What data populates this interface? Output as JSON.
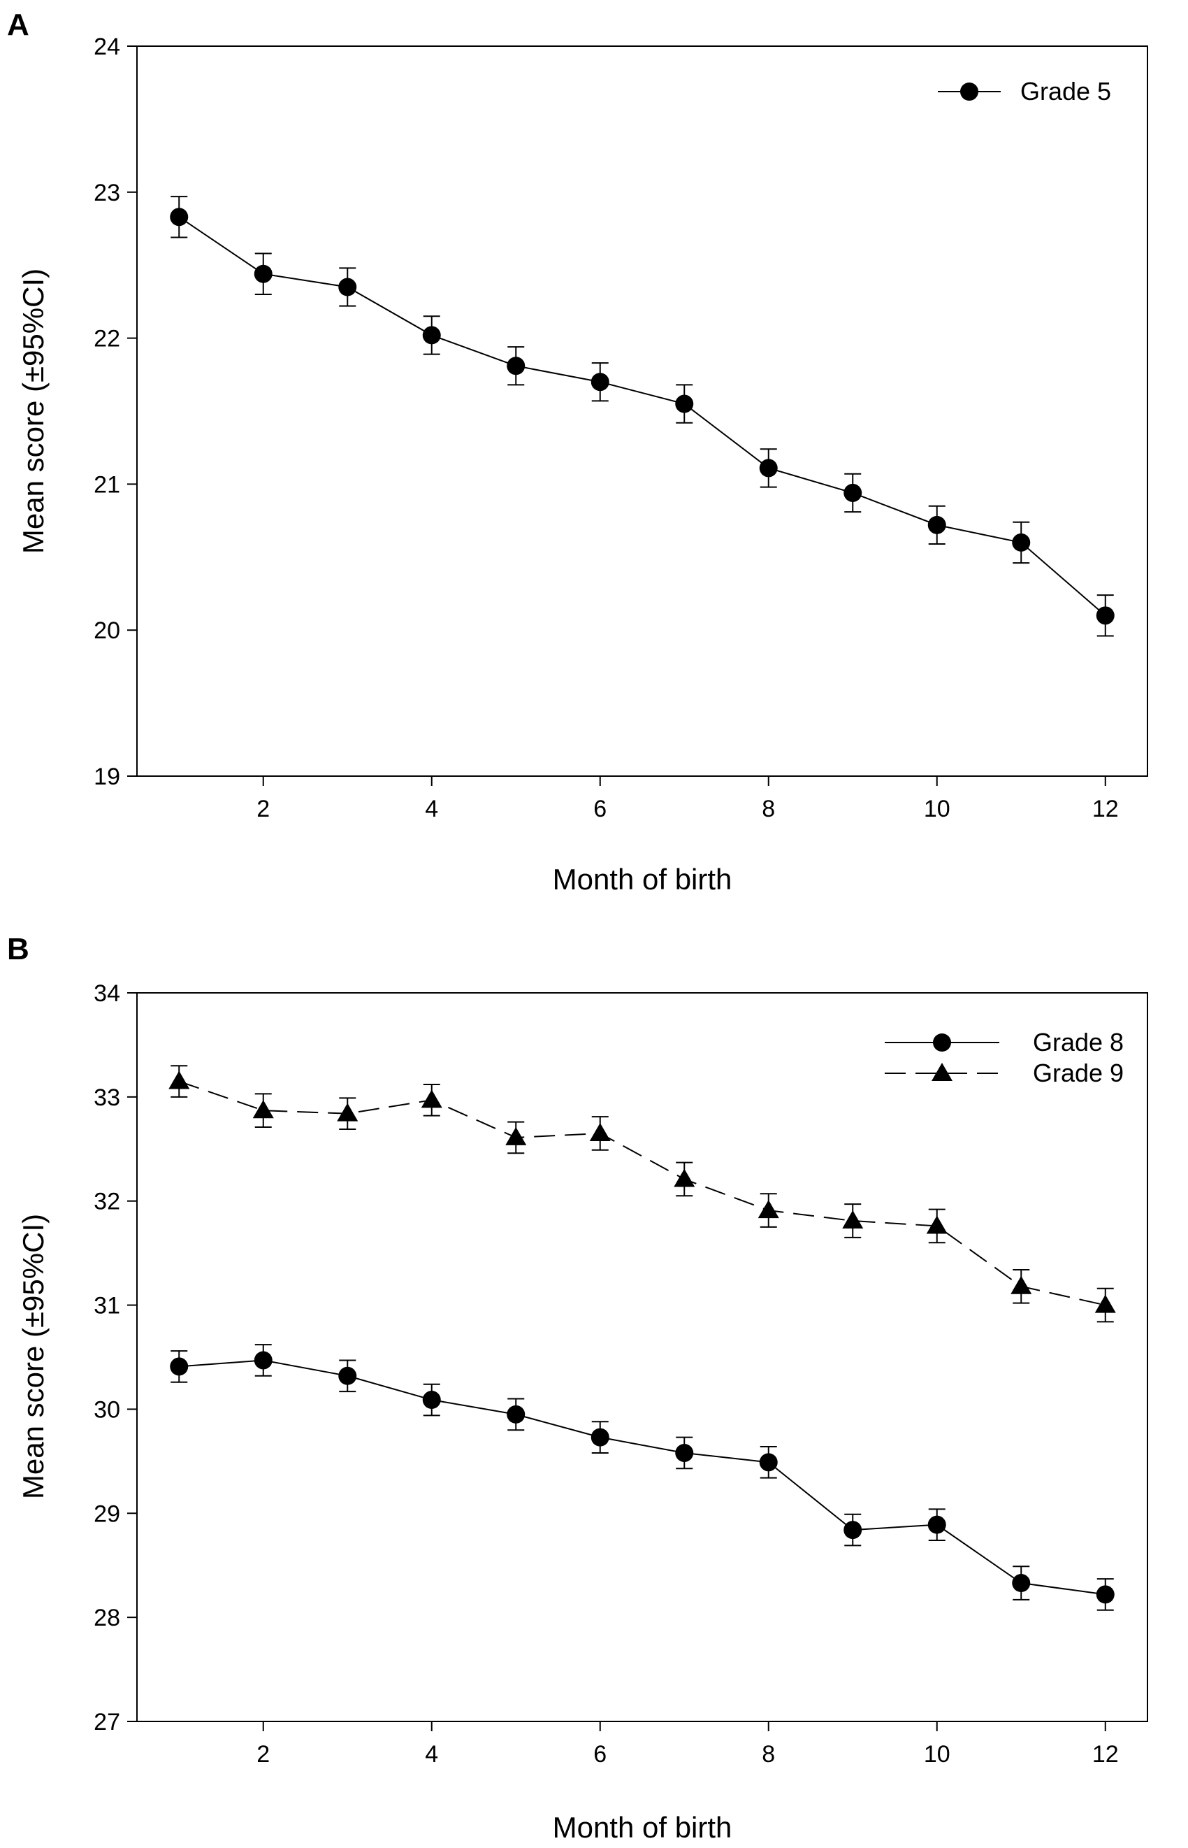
{
  "chart_data": [
    {
      "panel": "A",
      "type": "line",
      "title": "",
      "xlabel": "Month of birth",
      "ylabel": "Mean score (±95%CI)",
      "xlim": [
        0.5,
        12.5
      ],
      "ylim": [
        19,
        24
      ],
      "xticks": [
        2,
        4,
        6,
        8,
        10,
        12
      ],
      "yticks": [
        19,
        20,
        21,
        22,
        23,
        24
      ],
      "legend_position": "top-right",
      "series": [
        {
          "name": "Grade 5",
          "marker": "circle",
          "line_style": "solid",
          "x": [
            1,
            2,
            3,
            4,
            5,
            6,
            7,
            8,
            9,
            10,
            11,
            12
          ],
          "values": [
            22.83,
            22.44,
            22.35,
            22.02,
            21.81,
            21.7,
            21.55,
            21.11,
            20.94,
            20.72,
            20.6,
            20.1
          ],
          "ci": [
            0.14,
            0.14,
            0.13,
            0.13,
            0.13,
            0.13,
            0.13,
            0.13,
            0.13,
            0.13,
            0.14,
            0.14
          ]
        }
      ]
    },
    {
      "panel": "B",
      "type": "line",
      "title": "",
      "xlabel": "Month of birth",
      "ylabel": "Mean score (±95%CI)",
      "xlim": [
        0.5,
        12.5
      ],
      "ylim": [
        27,
        34
      ],
      "xticks": [
        2,
        4,
        6,
        8,
        10,
        12
      ],
      "yticks": [
        27,
        28,
        29,
        30,
        31,
        32,
        33,
        34
      ],
      "legend_position": "top-right",
      "series": [
        {
          "name": "Grade 8",
          "marker": "circle",
          "line_style": "solid",
          "x": [
            1,
            2,
            3,
            4,
            5,
            6,
            7,
            8,
            9,
            10,
            11,
            12
          ],
          "values": [
            30.41,
            30.47,
            30.32,
            30.09,
            29.95,
            29.73,
            29.58,
            29.49,
            28.84,
            28.89,
            28.33,
            28.22
          ],
          "ci": [
            0.15,
            0.15,
            0.15,
            0.15,
            0.15,
            0.15,
            0.15,
            0.15,
            0.15,
            0.15,
            0.16,
            0.15
          ]
        },
        {
          "name": "Grade 9",
          "marker": "triangle",
          "line_style": "dashed",
          "x": [
            1,
            2,
            3,
            4,
            5,
            6,
            7,
            8,
            9,
            10,
            11,
            12
          ],
          "values": [
            33.15,
            32.87,
            32.84,
            32.97,
            32.61,
            32.65,
            32.21,
            31.91,
            31.81,
            31.76,
            31.18,
            31.0
          ],
          "ci": [
            0.15,
            0.16,
            0.15,
            0.15,
            0.15,
            0.16,
            0.16,
            0.16,
            0.16,
            0.16,
            0.16,
            0.16
          ]
        }
      ]
    }
  ]
}
